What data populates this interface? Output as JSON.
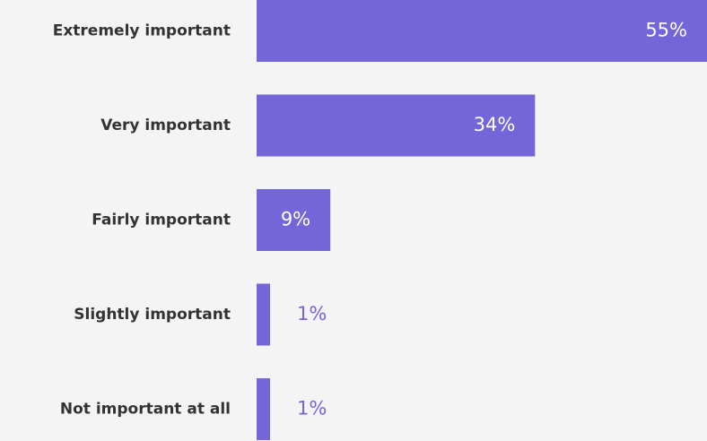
{
  "chart_data": {
    "type": "hbar",
    "categories": [
      "Extremely important",
      "Very important",
      "Fairly important",
      "Slightly important",
      "Not important at all"
    ],
    "values": [
      55,
      34,
      9,
      1,
      1
    ],
    "value_labels": [
      "55%",
      "34%",
      "9%",
      "1%",
      "1%"
    ],
    "color": "#7466d9"
  }
}
